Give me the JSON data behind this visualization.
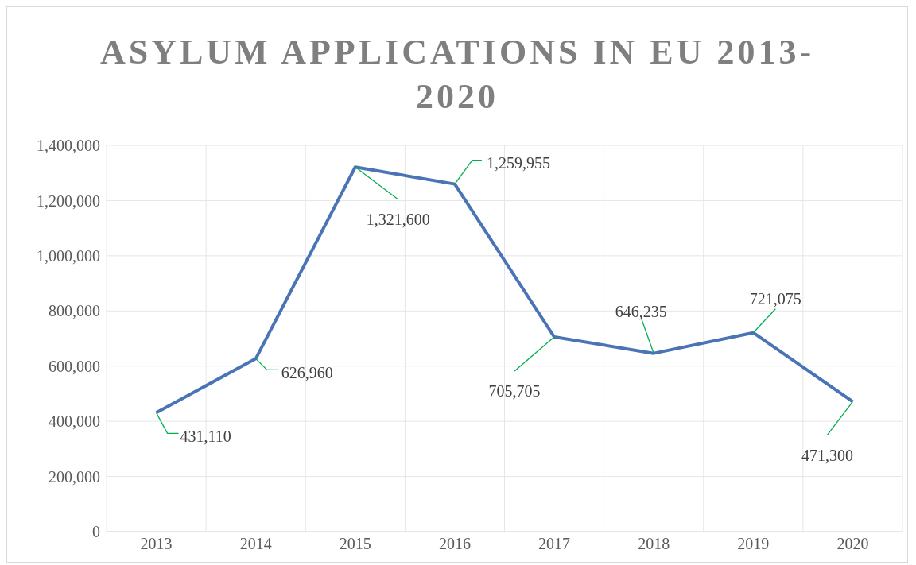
{
  "chart_data": {
    "type": "line",
    "title": "ASYLUM APPLICATIONS IN EU 2013-2020",
    "categories": [
      "2013",
      "2014",
      "2015",
      "2016",
      "2017",
      "2018",
      "2019",
      "2020"
    ],
    "series": [
      {
        "color": "#4a74b5",
        "values": [
          431110,
          626960,
          1321600,
          1259955,
          705705,
          646235,
          721075,
          471300
        ],
        "value_labels": [
          "431,110",
          "626,960",
          "1,321,600",
          "1,259,955",
          "705,705",
          "646,235",
          "721,075",
          "471,300"
        ]
      }
    ],
    "ylim": [
      0,
      1400000
    ],
    "yticks": [
      0,
      {
        "value": 200000,
        "label": "200,000"
      },
      {
        "value": 400000,
        "label": "400,000"
      },
      {
        "value": 600000,
        "label": "600,000"
      },
      {
        "value": 800000,
        "label": "800,000"
      },
      {
        "value": 1000000,
        "label": "1,000,000"
      },
      {
        "value": 1200000,
        "label": "1,200,000"
      },
      {
        "value": 1400000,
        "label": "1,400,000"
      }
    ],
    "grid": true,
    "marker": "none",
    "line_style": "solid"
  }
}
